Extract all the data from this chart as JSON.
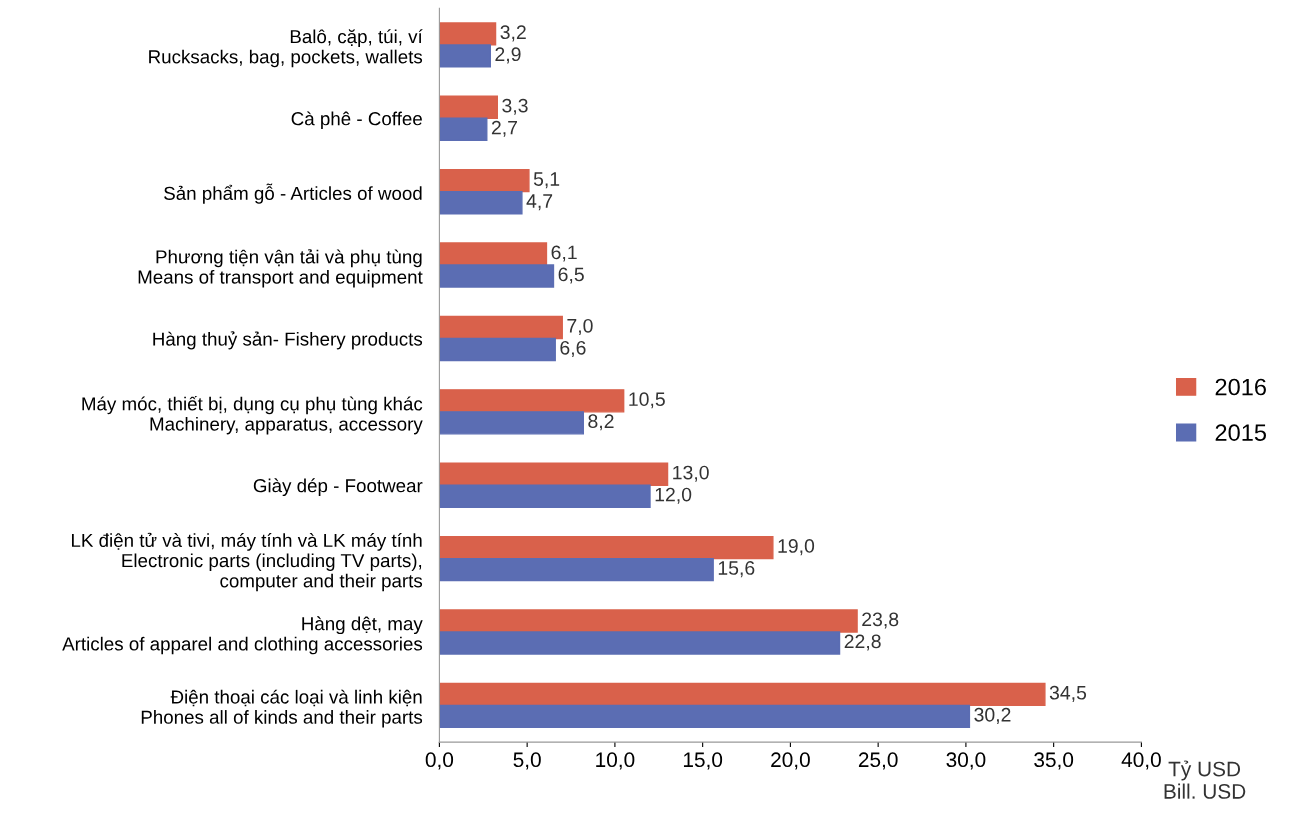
{
  "chart_data": {
    "type": "bar",
    "orientation": "horizontal",
    "categories": [
      "Balô, cặp, túi, ví\nRucksacks, bag, pockets, wallets",
      "Cà phê - Coffee",
      "Sản phẩm gỗ - Articles of wood",
      "Phương tiện vận tải và phụ tùng\nMeans of transport and equipment",
      "Hàng thuỷ sản- Fishery products",
      "Máy móc, thiết bị, dụng cụ phụ tùng khác\nMachinery, apparatus, accessory",
      "Giày dép - Footwear",
      "LK điện tử và tivi, máy tính và LK máy tính\nElectronic parts (including TV parts),\ncomputer and their parts",
      "Hàng dệt, may\nArticles of apparel and clothing accessories",
      "Điện thoại các loại và linh kiện\nPhones all of kinds and their parts"
    ],
    "series": [
      {
        "name": "2016",
        "color": "#d9614b",
        "values": [
          3.2,
          3.3,
          5.1,
          6.1,
          7.0,
          10.5,
          13.0,
          19.0,
          23.8,
          34.5
        ],
        "value_labels": [
          "3,2",
          "3,3",
          "5,1",
          "6,1",
          "7,0",
          "10,5",
          "13,0",
          "19,0",
          "23,8",
          "34,5"
        ]
      },
      {
        "name": "2015",
        "color": "#5b6db3",
        "values": [
          2.9,
          2.7,
          4.7,
          6.5,
          6.6,
          8.2,
          12.0,
          15.6,
          22.8,
          30.2
        ],
        "value_labels": [
          "2,9",
          "2,7",
          "4,7",
          "6,5",
          "6,6",
          "8,2",
          "12,0",
          "15,6",
          "22,8",
          "30,2"
        ]
      }
    ],
    "xlim": [
      0,
      40
    ],
    "xticks": [
      {
        "value": 0,
        "label": "0,0"
      },
      {
        "value": 5,
        "label": "5,0"
      },
      {
        "value": 10,
        "label": "10,0"
      },
      {
        "value": 15,
        "label": "15,0"
      },
      {
        "value": 20,
        "label": "20,0"
      },
      {
        "value": 25,
        "label": "25,0"
      },
      {
        "value": 30,
        "label": "30,0"
      },
      {
        "value": 35,
        "label": "35,0"
      },
      {
        "value": 40,
        "label": "40,0"
      }
    ],
    "xlabel": "Tỷ USD\nBill. USD",
    "legend": "right",
    "grid": false
  }
}
